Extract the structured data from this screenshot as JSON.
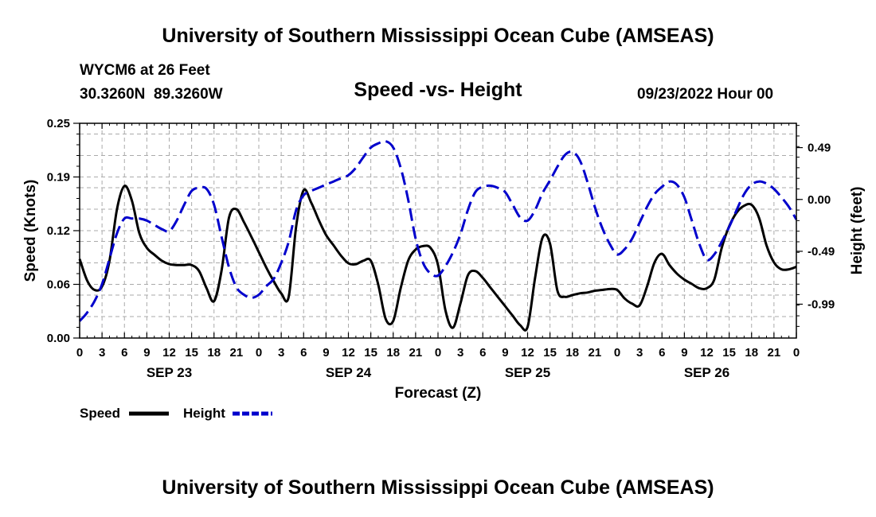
{
  "page": {
    "title": "University of Southern Mississippi Ocean Cube (AMSEAS)",
    "title_repeat": "University of Southern Mississippi Ocean Cube (AMSEAS)",
    "station": "WYCM6 at 26 Feet",
    "coords": "30.3260N  89.3260W",
    "chart_title": "Speed -vs- Height",
    "datetime": "09/23/2022 Hour 00"
  },
  "colors": {
    "speed": "#000000",
    "height": "#0000cc",
    "grid": "#aaaaaa"
  },
  "chart_data": {
    "type": "line",
    "title": "Speed -vs- Height",
    "xlabel": "Forecast (Z)",
    "ylabel": "Speed (Knots)",
    "y2label": "Height (feet)",
    "x_range_hours": [
      0,
      96
    ],
    "ylim": [
      0,
      0.25
    ],
    "y2lim": [
      -1.31,
      0.72
    ],
    "yticks": [
      "0.00",
      "0.06",
      "0.12",
      "0.19",
      "0.25"
    ],
    "y2ticks": [
      "-0.99",
      "-0.49",
      "0.00",
      "0.49"
    ],
    "xtick_labels": [
      "0",
      "3",
      "6",
      "9",
      "12",
      "15",
      "18",
      "21",
      "0",
      "3",
      "6",
      "9",
      "12",
      "15",
      "18",
      "21",
      "0",
      "3",
      "6",
      "9",
      "12",
      "15",
      "18",
      "21",
      "0",
      "3",
      "6",
      "9",
      "12",
      "15",
      "18",
      "21",
      "0"
    ],
    "day_labels": [
      {
        "label": "SEP 23",
        "hour": 12
      },
      {
        "label": "SEP 24",
        "hour": 36
      },
      {
        "label": "SEP 25",
        "hour": 60
      },
      {
        "label": "SEP 26",
        "hour": 84
      }
    ],
    "grid": true,
    "legend": [
      {
        "label": "Speed",
        "series": "speed"
      },
      {
        "label": "Height",
        "series": "height"
      }
    ],
    "series": [
      {
        "name": "Speed",
        "key": "speed",
        "axis": "left",
        "style": "solid",
        "points": [
          [
            0,
            0.092
          ],
          [
            1,
            0.067
          ],
          [
            2,
            0.056
          ],
          [
            3,
            0.06
          ],
          [
            4,
            0.09
          ],
          [
            5,
            0.15
          ],
          [
            6,
            0.177
          ],
          [
            7,
            0.16
          ],
          [
            8,
            0.122
          ],
          [
            9,
            0.105
          ],
          [
            10,
            0.097
          ],
          [
            11,
            0.09
          ],
          [
            12,
            0.086
          ],
          [
            13,
            0.085
          ],
          [
            14,
            0.085
          ],
          [
            15,
            0.085
          ],
          [
            16,
            0.078
          ],
          [
            17,
            0.058
          ],
          [
            18,
            0.043
          ],
          [
            19,
            0.078
          ],
          [
            20,
            0.14
          ],
          [
            21,
            0.15
          ],
          [
            22,
            0.135
          ],
          [
            23,
            0.118
          ],
          [
            24,
            0.1
          ],
          [
            25,
            0.082
          ],
          [
            26,
            0.066
          ],
          [
            27,
            0.052
          ],
          [
            28,
            0.048
          ],
          [
            29,
            0.13
          ],
          [
            30,
            0.172
          ],
          [
            31,
            0.158
          ],
          [
            32,
            0.138
          ],
          [
            33,
            0.12
          ],
          [
            34,
            0.108
          ],
          [
            35,
            0.096
          ],
          [
            36,
            0.087
          ],
          [
            37,
            0.086
          ],
          [
            38,
            0.09
          ],
          [
            39,
            0.09
          ],
          [
            40,
            0.062
          ],
          [
            41,
            0.022
          ],
          [
            42,
            0.02
          ],
          [
            43,
            0.058
          ],
          [
            44,
            0.09
          ],
          [
            45,
            0.103
          ],
          [
            46,
            0.107
          ],
          [
            47,
            0.105
          ],
          [
            48,
            0.085
          ],
          [
            49,
            0.032
          ],
          [
            50,
            0.012
          ],
          [
            51,
            0.04
          ],
          [
            52,
            0.073
          ],
          [
            53,
            0.078
          ],
          [
            54,
            0.07
          ],
          [
            55,
            0.059
          ],
          [
            56,
            0.048
          ],
          [
            57,
            0.037
          ],
          [
            58,
            0.026
          ],
          [
            59,
            0.015
          ],
          [
            60,
            0.013
          ],
          [
            61,
            0.07
          ],
          [
            62,
            0.117
          ],
          [
            63,
            0.11
          ],
          [
            64,
            0.055
          ],
          [
            65,
            0.048
          ],
          [
            66,
            0.05
          ],
          [
            67,
            0.052
          ],
          [
            68,
            0.053
          ],
          [
            69,
            0.055
          ],
          [
            70,
            0.056
          ],
          [
            71,
            0.057
          ],
          [
            72,
            0.056
          ],
          [
            73,
            0.046
          ],
          [
            74,
            0.04
          ],
          [
            75,
            0.038
          ],
          [
            76,
            0.06
          ],
          [
            77,
            0.088
          ],
          [
            78,
            0.098
          ],
          [
            79,
            0.085
          ],
          [
            80,
            0.075
          ],
          [
            81,
            0.068
          ],
          [
            82,
            0.063
          ],
          [
            83,
            0.058
          ],
          [
            84,
            0.058
          ],
          [
            85,
            0.068
          ],
          [
            86,
            0.105
          ],
          [
            87,
            0.13
          ],
          [
            88,
            0.146
          ],
          [
            89,
            0.154
          ],
          [
            90,
            0.155
          ],
          [
            91,
            0.14
          ],
          [
            92,
            0.108
          ],
          [
            93,
            0.088
          ],
          [
            94,
            0.08
          ],
          [
            95,
            0.08
          ],
          [
            96,
            0.083
          ]
        ]
      },
      {
        "name": "Height",
        "key": "height",
        "axis": "right",
        "style": "dashed",
        "points": [
          [
            0,
            -1.15
          ],
          [
            1,
            -1.07
          ],
          [
            2,
            -0.96
          ],
          [
            3,
            -0.8
          ],
          [
            4,
            -0.56
          ],
          [
            5,
            -0.32
          ],
          [
            6,
            -0.18
          ],
          [
            7,
            -0.18
          ],
          [
            8,
            -0.18
          ],
          [
            9,
            -0.2
          ],
          [
            10,
            -0.24
          ],
          [
            11,
            -0.28
          ],
          [
            12,
            -0.3
          ],
          [
            13,
            -0.2
          ],
          [
            14,
            -0.05
          ],
          [
            15,
            0.08
          ],
          [
            16,
            0.11
          ],
          [
            17,
            0.1
          ],
          [
            18,
            -0.05
          ],
          [
            19,
            -0.35
          ],
          [
            20,
            -0.64
          ],
          [
            21,
            -0.83
          ],
          [
            22,
            -0.9
          ],
          [
            23,
            -0.93
          ],
          [
            24,
            -0.9
          ],
          [
            25,
            -0.82
          ],
          [
            26,
            -0.75
          ],
          [
            27,
            -0.6
          ],
          [
            28,
            -0.4
          ],
          [
            29,
            -0.1
          ],
          [
            30,
            0.04
          ],
          [
            31,
            0.08
          ],
          [
            32,
            0.11
          ],
          [
            33,
            0.14
          ],
          [
            34,
            0.17
          ],
          [
            35,
            0.2
          ],
          [
            36,
            0.23
          ],
          [
            37,
            0.3
          ],
          [
            38,
            0.4
          ],
          [
            39,
            0.49
          ],
          [
            40,
            0.53
          ],
          [
            41,
            0.55
          ],
          [
            42,
            0.49
          ],
          [
            43,
            0.3
          ],
          [
            44,
            0.0
          ],
          [
            45,
            -0.37
          ],
          [
            46,
            -0.6
          ],
          [
            47,
            -0.7
          ],
          [
            48,
            -0.72
          ],
          [
            49,
            -0.63
          ],
          [
            50,
            -0.5
          ],
          [
            51,
            -0.33
          ],
          [
            52,
            -0.1
          ],
          [
            53,
            0.07
          ],
          [
            54,
            0.12
          ],
          [
            55,
            0.13
          ],
          [
            56,
            0.11
          ],
          [
            57,
            0.07
          ],
          [
            58,
            -0.05
          ],
          [
            59,
            -0.17
          ],
          [
            60,
            -0.2
          ],
          [
            61,
            -0.1
          ],
          [
            62,
            0.06
          ],
          [
            63,
            0.18
          ],
          [
            64,
            0.31
          ],
          [
            65,
            0.42
          ],
          [
            66,
            0.45
          ],
          [
            67,
            0.37
          ],
          [
            68,
            0.17
          ],
          [
            69,
            -0.07
          ],
          [
            70,
            -0.27
          ],
          [
            71,
            -0.42
          ],
          [
            72,
            -0.52
          ],
          [
            73,
            -0.47
          ],
          [
            74,
            -0.37
          ],
          [
            75,
            -0.22
          ],
          [
            76,
            -0.07
          ],
          [
            77,
            0.05
          ],
          [
            78,
            0.12
          ],
          [
            79,
            0.17
          ],
          [
            80,
            0.14
          ],
          [
            81,
            0.02
          ],
          [
            82,
            -0.2
          ],
          [
            83,
            -0.42
          ],
          [
            84,
            -0.57
          ],
          [
            85,
            -0.52
          ],
          [
            86,
            -0.4
          ],
          [
            87,
            -0.26
          ],
          [
            88,
            -0.1
          ],
          [
            89,
            0.05
          ],
          [
            90,
            0.14
          ],
          [
            91,
            0.17
          ],
          [
            92,
            0.15
          ],
          [
            93,
            0.1
          ],
          [
            94,
            0.02
          ],
          [
            95,
            -0.07
          ],
          [
            96,
            -0.19
          ]
        ]
      }
    ]
  }
}
